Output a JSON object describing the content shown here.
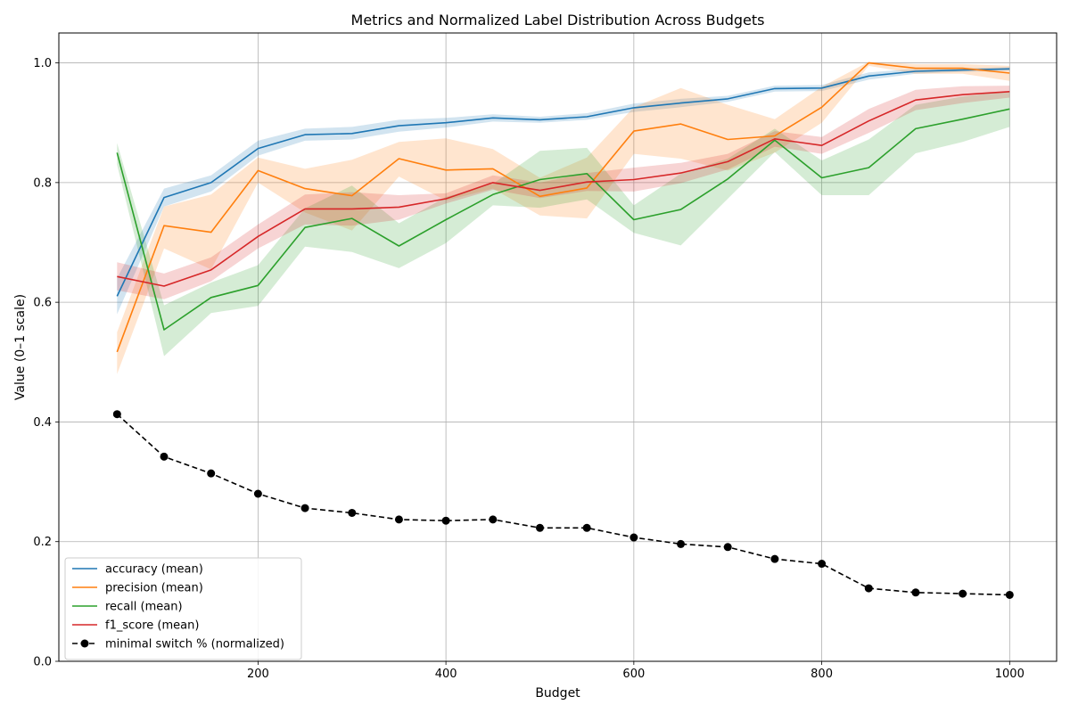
{
  "chart_data": {
    "type": "line",
    "title": "Metrics and Normalized Label Distribution Across Budgets",
    "xlabel": "Budget",
    "ylabel": "Value (0–1 scale)",
    "xlim": [
      -12,
      1050
    ],
    "ylim": [
      0.0,
      1.05
    ],
    "xticks": [
      200,
      400,
      600,
      800,
      1000
    ],
    "yticks": [
      0.0,
      0.2,
      0.4,
      0.6,
      0.8,
      1.0
    ],
    "xtick_labels": [
      "200",
      "400",
      "600",
      "800",
      "1000"
    ],
    "ytick_labels": [
      "0.0",
      "0.2",
      "0.4",
      "0.6",
      "0.8",
      "1.0"
    ],
    "grid": true,
    "legend_position": "lower-left",
    "x": [
      50,
      100,
      150,
      200,
      250,
      300,
      350,
      400,
      450,
      500,
      550,
      600,
      650,
      700,
      750,
      800,
      850,
      900,
      950,
      1000
    ],
    "series": [
      {
        "name": "accuracy (mean)",
        "color": "#1f77b4",
        "style": "solid",
        "values": [
          0.61,
          0.775,
          0.8,
          0.857,
          0.88,
          0.882,
          0.895,
          0.9,
          0.908,
          0.905,
          0.91,
          0.925,
          0.933,
          0.94,
          0.957,
          0.958,
          0.978,
          0.986,
          0.988,
          0.99
        ],
        "lower": [
          0.58,
          0.76,
          0.785,
          0.845,
          0.87,
          0.872,
          0.885,
          0.892,
          0.902,
          0.9,
          0.905,
          0.918,
          0.926,
          0.935,
          0.952,
          0.953,
          0.972,
          0.982,
          0.985,
          0.987
        ],
        "upper": [
          0.64,
          0.79,
          0.812,
          0.87,
          0.89,
          0.893,
          0.905,
          0.908,
          0.914,
          0.91,
          0.916,
          0.932,
          0.94,
          0.945,
          0.962,
          0.963,
          0.984,
          0.99,
          0.991,
          0.993
        ]
      },
      {
        "name": "precision (mean)",
        "color": "#ff7f0e",
        "style": "solid",
        "values": [
          0.517,
          0.728,
          0.717,
          0.82,
          0.79,
          0.778,
          0.84,
          0.821,
          0.823,
          0.777,
          0.791,
          0.886,
          0.898,
          0.872,
          0.878,
          0.926,
          1.0,
          0.991,
          0.991,
          0.983
        ],
        "lower": [
          0.48,
          0.69,
          0.655,
          0.8,
          0.75,
          0.72,
          0.81,
          0.77,
          0.79,
          0.745,
          0.74,
          0.848,
          0.84,
          0.82,
          0.85,
          0.9,
          0.995,
          0.982,
          0.982,
          0.97
        ],
        "upper": [
          0.55,
          0.76,
          0.78,
          0.842,
          0.823,
          0.838,
          0.868,
          0.874,
          0.856,
          0.808,
          0.842,
          0.926,
          0.958,
          0.93,
          0.906,
          0.96,
          1.002,
          0.998,
          0.998,
          0.995
        ]
      },
      {
        "name": "recall (mean)",
        "color": "#2ca02c",
        "style": "solid",
        "values": [
          0.85,
          0.554,
          0.608,
          0.628,
          0.725,
          0.74,
          0.694,
          0.738,
          0.78,
          0.805,
          0.815,
          0.738,
          0.755,
          0.806,
          0.871,
          0.808,
          0.825,
          0.89,
          0.906,
          0.923
        ],
        "lower": [
          0.83,
          0.51,
          0.582,
          0.594,
          0.693,
          0.684,
          0.657,
          0.699,
          0.762,
          0.758,
          0.772,
          0.716,
          0.695,
          0.773,
          0.851,
          0.779,
          0.779,
          0.849,
          0.868,
          0.893
        ],
        "upper": [
          0.866,
          0.595,
          0.633,
          0.662,
          0.757,
          0.795,
          0.732,
          0.776,
          0.798,
          0.853,
          0.858,
          0.762,
          0.815,
          0.84,
          0.89,
          0.837,
          0.872,
          0.93,
          0.944,
          0.953
        ]
      },
      {
        "name": "f1_score (mean)",
        "color": "#d62728",
        "style": "solid",
        "values": [
          0.643,
          0.627,
          0.654,
          0.71,
          0.756,
          0.756,
          0.759,
          0.773,
          0.8,
          0.787,
          0.801,
          0.805,
          0.816,
          0.835,
          0.873,
          0.862,
          0.903,
          0.938,
          0.947,
          0.952
        ],
        "lower": [
          0.62,
          0.605,
          0.635,
          0.69,
          0.73,
          0.728,
          0.738,
          0.765,
          0.788,
          0.774,
          0.786,
          0.785,
          0.799,
          0.822,
          0.86,
          0.848,
          0.883,
          0.921,
          0.933,
          0.942
        ],
        "upper": [
          0.667,
          0.648,
          0.675,
          0.73,
          0.78,
          0.784,
          0.779,
          0.782,
          0.812,
          0.8,
          0.816,
          0.825,
          0.833,
          0.848,
          0.886,
          0.876,
          0.923,
          0.955,
          0.961,
          0.962
        ]
      },
      {
        "name": "minimal switch % (normalized)",
        "color": "#000000",
        "style": "dashed-markers",
        "values": [
          0.413,
          0.342,
          0.314,
          0.28,
          0.256,
          0.248,
          0.237,
          0.235,
          0.237,
          0.223,
          0.223,
          0.207,
          0.196,
          0.191,
          0.171,
          0.163,
          0.122,
          0.115,
          0.113,
          0.111
        ]
      }
    ]
  }
}
